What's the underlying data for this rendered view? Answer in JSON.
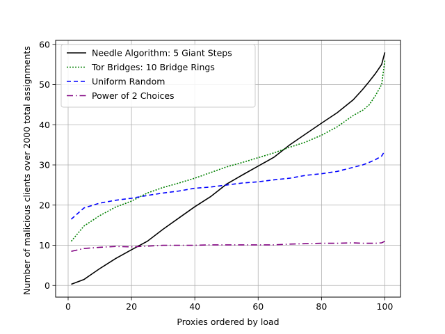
{
  "chart_data": {
    "type": "line",
    "xlabel": "Proxies ordered by load",
    "ylabel": "Number of malicious clients over 2000 total assignments",
    "xlim": [
      -3.95,
      104.95
    ],
    "ylim": [
      -2.9,
      61.0
    ],
    "xticks": [
      0,
      20,
      40,
      60,
      80,
      100
    ],
    "yticks": [
      0,
      10,
      20,
      30,
      40,
      50,
      60
    ],
    "grid": true,
    "legend_position": "top-left",
    "x": [
      1,
      5,
      10,
      15,
      20,
      25,
      30,
      35,
      40,
      45,
      50,
      55,
      60,
      65,
      70,
      75,
      80,
      85,
      90,
      93,
      95,
      97,
      99,
      100
    ],
    "series": [
      {
        "name": "Needle Algorithm: 5 Giant Steps",
        "color": "#000000",
        "dash": "solid",
        "values": [
          0.3,
          1.5,
          4.2,
          6.7,
          8.9,
          11.0,
          14.0,
          16.8,
          19.6,
          22.1,
          25.2,
          27.5,
          29.7,
          31.9,
          35.0,
          37.7,
          40.4,
          43.0,
          46.2,
          48.8,
          50.7,
          52.7,
          55.0,
          58.0
        ]
      },
      {
        "name": "Tor Bridges: 10 Bridge Rings",
        "color": "#008000",
        "dash": "dotted",
        "values": [
          11.0,
          14.8,
          17.4,
          19.5,
          21.0,
          23.0,
          24.4,
          25.5,
          26.7,
          28.1,
          29.5,
          30.6,
          31.8,
          33.0,
          34.4,
          35.7,
          37.4,
          39.5,
          42.3,
          43.6,
          44.9,
          47.2,
          50.0,
          56.0
        ]
      },
      {
        "name": "Uniform Random",
        "color": "#0000ff",
        "dash": "dashed",
        "values": [
          16.5,
          19.3,
          20.5,
          21.2,
          21.7,
          22.4,
          23.0,
          23.5,
          24.2,
          24.5,
          25.0,
          25.5,
          25.8,
          26.3,
          26.7,
          27.4,
          27.8,
          28.4,
          29.4,
          30.0,
          30.6,
          31.3,
          32.2,
          33.5
        ]
      },
      {
        "name": "Power of 2 Choices",
        "color": "#800080",
        "dash": "dashdot",
        "values": [
          8.5,
          9.2,
          9.5,
          9.7,
          9.6,
          9.8,
          10.0,
          10.0,
          10.0,
          10.1,
          10.1,
          10.1,
          10.1,
          10.1,
          10.3,
          10.4,
          10.5,
          10.5,
          10.6,
          10.5,
          10.5,
          10.5,
          10.6,
          11.0
        ]
      }
    ]
  }
}
